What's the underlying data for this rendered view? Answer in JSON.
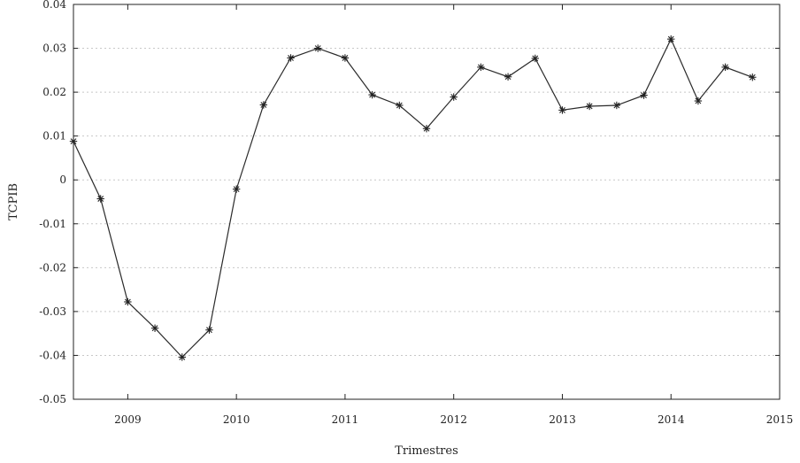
{
  "chart_data": {
    "type": "line",
    "title": "",
    "xlabel": "Trimestres",
    "ylabel": "TCPIB",
    "xlim": [
      2008.5,
      2015
    ],
    "ylim": [
      -0.05,
      0.04
    ],
    "x_ticks": [
      2009,
      2010,
      2011,
      2012,
      2013,
      2014,
      2015
    ],
    "x_tick_labels": [
      "2009",
      "2010",
      "2011",
      "2012",
      "2013",
      "2014",
      "2015"
    ],
    "y_ticks": [
      -0.05,
      -0.04,
      -0.03,
      -0.02,
      -0.01,
      0,
      0.01,
      0.02,
      0.03,
      0.04
    ],
    "y_tick_labels": [
      "-0.05",
      "-0.04",
      "-0.03",
      "-0.02",
      "-0.01",
      "0",
      "0.01",
      "0.02",
      "0.03",
      "0.04"
    ],
    "grid": true,
    "series": [
      {
        "x": [
          2008.5,
          2008.75,
          2009.0,
          2009.25,
          2009.5,
          2009.75,
          2010.0,
          2010.25,
          2010.5,
          2010.75,
          2011.0,
          2011.25,
          2011.5,
          2011.75,
          2012.0,
          2012.25,
          2012.5,
          2012.75,
          2013.0,
          2013.25,
          2013.5,
          2013.75,
          2014.0,
          2014.25,
          2014.5,
          2014.75
        ],
        "values": [
          0.0088,
          -0.0043,
          -0.0278,
          -0.0338,
          -0.0404,
          -0.0342,
          -0.0021,
          0.0171,
          0.0278,
          0.03,
          0.0278,
          0.0194,
          0.017,
          0.0117,
          0.0189,
          0.0257,
          0.0235,
          0.0277,
          0.0159,
          0.0168,
          0.017,
          0.0193,
          0.0321,
          0.018,
          0.0257,
          0.0234
        ]
      }
    ]
  }
}
